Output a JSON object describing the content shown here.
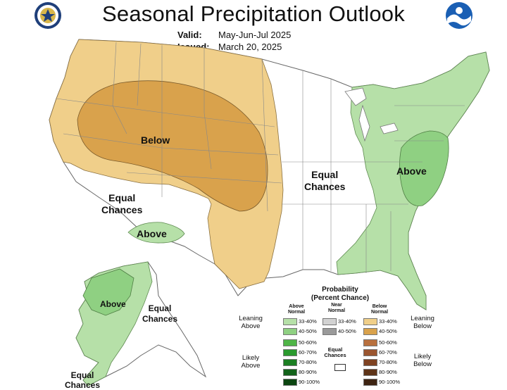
{
  "header": {
    "title": "Seasonal Precipitation Outlook",
    "valid_label": "Valid:",
    "valid_value": "May-Jun-Jul 2025",
    "issued_label": "Issued:",
    "issued_value": "March 20, 2025",
    "left_logo": "doc-seal-icon",
    "right_logo": "noaa-logo-icon"
  },
  "map_labels": {
    "below": "Below",
    "equal_chances_central_1": "Equal",
    "equal_chances_central_2": "Chances",
    "equal_chances_sw_1": "Equal",
    "equal_chances_sw_2": "Chances",
    "above_sw": "Above",
    "above_east": "Above",
    "alaska_above": "Above",
    "alaska_equal_1": "Equal",
    "alaska_equal_2": "Chances",
    "alaska_sw_equal_1": "Equal",
    "alaska_sw_equal_2": "Chances"
  },
  "colors": {
    "below_33_40": "#f0cf8a",
    "below_40_50": "#d9a24c",
    "above_33_40": "#b6e0a8",
    "above_40_50": "#8fd082",
    "border": "#666666"
  },
  "legend": {
    "title_1": "Probability",
    "title_2": "(Percent Chance)",
    "col_above": "Above\nNormal",
    "col_near": "Near\nNormal",
    "col_below": "Below\nNormal",
    "leaning_above": "Leaning\nAbove",
    "leaning_below": "Leaning\nBelow",
    "likely_above": "Likely\nAbove",
    "likely_below": "Likely\nBelow",
    "equal_chances": "Equal\nChances",
    "rows": [
      {
        "label": "33-40%",
        "above": "#b6e0a8",
        "near": "#d2d2d2",
        "near_label": "33-40%",
        "below": "#f0cf8a"
      },
      {
        "label": "40-50%",
        "above": "#8fd082",
        "near": "#9a9a9a",
        "near_label": "40-50%",
        "below": "#d9a24c"
      },
      {
        "label": "50-60%",
        "above": "#4fb547",
        "near": "",
        "near_label": "",
        "below": "#b8703e"
      },
      {
        "label": "60-70%",
        "above": "#2a9a2e",
        "near": "",
        "near_label": "",
        "below": "#9a5530"
      },
      {
        "label": "70-80%",
        "above": "#1b7e22",
        "near": "",
        "near_label": "",
        "below": "#7e4222"
      },
      {
        "label": "80-90%",
        "above": "#12621a",
        "near": "",
        "near_label": "",
        "below": "#5e3418"
      },
      {
        "label": "90-100%",
        "above": "#0b4510",
        "near": "",
        "near_label": "",
        "below": "#3e2412"
      }
    ]
  }
}
